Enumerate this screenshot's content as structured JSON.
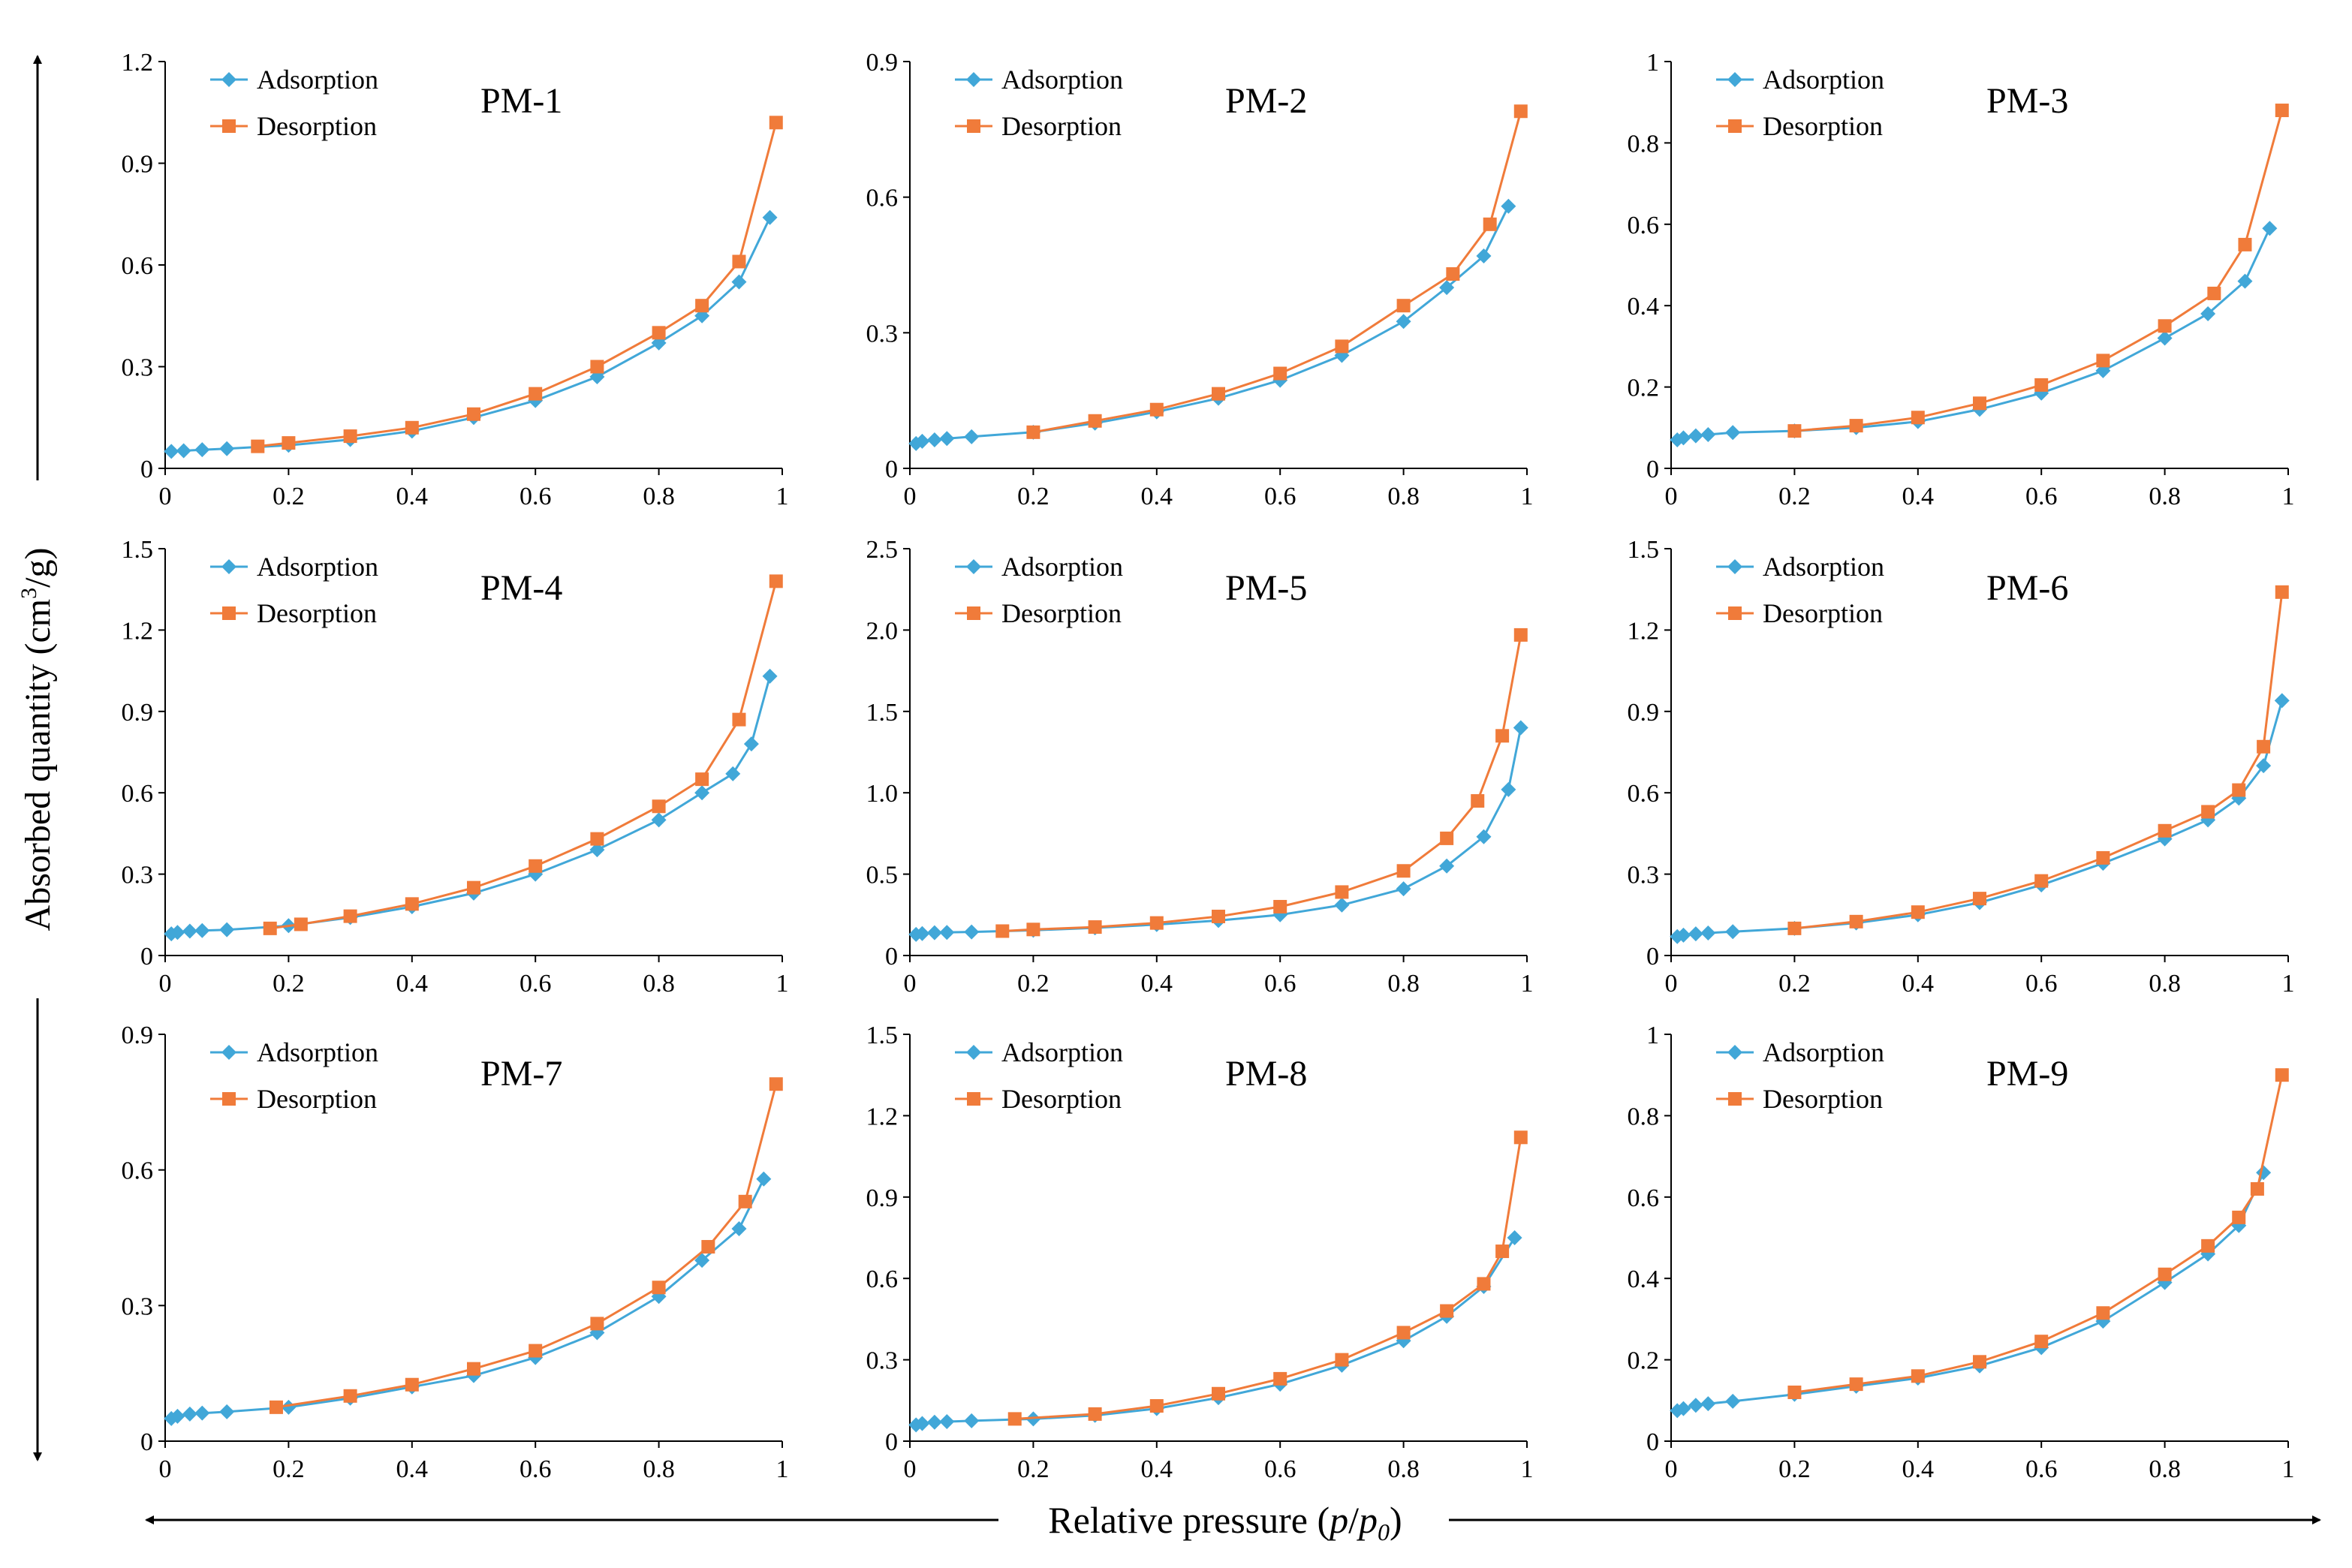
{
  "figure": {
    "ylabel_main": "Absorbed quantity (cm",
    "ylabel_sup": "3",
    "ylabel_tail": "/g)",
    "xlabel_main": "Relative pressure (",
    "xlabel_p": "p",
    "xlabel_slash": "/",
    "xlabel_p0": "p",
    "xlabel_sub": "0",
    "xlabel_close": ")"
  },
  "colors": {
    "adsorption": "#41a7d8",
    "desorption": "#f07b3a",
    "axis": "#000000"
  },
  "legend": {
    "adsorption": "Adsorption",
    "desorption": "Desorption",
    "placement": "top-left"
  },
  "chart_data": [
    {
      "type": "line",
      "title": "PM-1",
      "xlim": [
        0,
        1
      ],
      "ylim": [
        0,
        1.2
      ],
      "xticks": [
        "0",
        "0.2",
        "0.4",
        "0.6",
        "0.8",
        "1"
      ],
      "yticks": [
        "0",
        "0.3",
        "0.6",
        "0.9",
        "1.2"
      ],
      "series": [
        {
          "name": "Adsorption",
          "x": [
            0.01,
            0.03,
            0.06,
            0.1,
            0.2,
            0.3,
            0.4,
            0.5,
            0.6,
            0.7,
            0.8,
            0.87,
            0.93,
            0.98
          ],
          "y": [
            0.05,
            0.052,
            0.055,
            0.058,
            0.068,
            0.085,
            0.11,
            0.15,
            0.2,
            0.27,
            0.37,
            0.45,
            0.55,
            0.74
          ]
        },
        {
          "name": "Desorption",
          "x": [
            0.15,
            0.2,
            0.3,
            0.4,
            0.5,
            0.6,
            0.7,
            0.8,
            0.87,
            0.93,
            0.99
          ],
          "y": [
            0.065,
            0.075,
            0.095,
            0.12,
            0.16,
            0.22,
            0.3,
            0.4,
            0.48,
            0.61,
            1.02
          ]
        }
      ]
    },
    {
      "type": "line",
      "title": "PM-2",
      "xlim": [
        0,
        1
      ],
      "ylim": [
        0,
        0.9
      ],
      "xticks": [
        "0",
        "0.2",
        "0.4",
        "0.6",
        "0.8",
        "1"
      ],
      "yticks": [
        "0",
        "0.3",
        "0.6",
        "0.9"
      ],
      "series": [
        {
          "name": "Adsorption",
          "x": [
            0.01,
            0.02,
            0.04,
            0.06,
            0.1,
            0.2,
            0.3,
            0.4,
            0.5,
            0.6,
            0.7,
            0.8,
            0.87,
            0.93,
            0.97
          ],
          "y": [
            0.055,
            0.06,
            0.063,
            0.066,
            0.07,
            0.08,
            0.1,
            0.125,
            0.155,
            0.195,
            0.25,
            0.325,
            0.4,
            0.47,
            0.58
          ]
        },
        {
          "name": "Desorption",
          "x": [
            0.2,
            0.3,
            0.4,
            0.5,
            0.6,
            0.7,
            0.8,
            0.88,
            0.94,
            0.99
          ],
          "y": [
            0.08,
            0.105,
            0.13,
            0.165,
            0.21,
            0.27,
            0.36,
            0.43,
            0.54,
            0.79
          ]
        }
      ]
    },
    {
      "type": "line",
      "title": "PM-3",
      "xlim": [
        0,
        1
      ],
      "ylim": [
        0,
        1
      ],
      "xticks": [
        "0",
        "0.2",
        "0.4",
        "0.6",
        "0.8",
        "1"
      ],
      "yticks": [
        "0",
        "0.2",
        "0.4",
        "0.6",
        "0.8",
        "1"
      ],
      "series": [
        {
          "name": "Adsorption",
          "x": [
            0.01,
            0.02,
            0.04,
            0.06,
            0.1,
            0.2,
            0.3,
            0.4,
            0.5,
            0.6,
            0.7,
            0.8,
            0.87,
            0.93,
            0.97
          ],
          "y": [
            0.07,
            0.075,
            0.08,
            0.083,
            0.088,
            0.092,
            0.1,
            0.115,
            0.145,
            0.185,
            0.24,
            0.32,
            0.38,
            0.46,
            0.59
          ]
        },
        {
          "name": "Desorption",
          "x": [
            0.2,
            0.3,
            0.4,
            0.5,
            0.6,
            0.7,
            0.8,
            0.88,
            0.93,
            0.99
          ],
          "y": [
            0.092,
            0.105,
            0.125,
            0.16,
            0.205,
            0.265,
            0.35,
            0.43,
            0.55,
            0.88
          ]
        }
      ]
    },
    {
      "type": "line",
      "title": "PM-4",
      "xlim": [
        0,
        1
      ],
      "ylim": [
        0,
        1.5
      ],
      "xticks": [
        "0",
        "0.2",
        "0.4",
        "0.6",
        "0.8",
        "1"
      ],
      "yticks": [
        "0",
        "0.3",
        "0.6",
        "0.9",
        "1.2",
        "1.5"
      ],
      "series": [
        {
          "name": "Adsorption",
          "x": [
            0.01,
            0.02,
            0.04,
            0.06,
            0.1,
            0.2,
            0.3,
            0.4,
            0.5,
            0.6,
            0.7,
            0.8,
            0.87,
            0.92,
            0.95,
            0.98
          ],
          "y": [
            0.08,
            0.085,
            0.09,
            0.092,
            0.095,
            0.11,
            0.14,
            0.18,
            0.23,
            0.3,
            0.39,
            0.5,
            0.6,
            0.67,
            0.78,
            1.03
          ]
        },
        {
          "name": "Desorption",
          "x": [
            0.17,
            0.22,
            0.3,
            0.4,
            0.5,
            0.6,
            0.7,
            0.8,
            0.87,
            0.93,
            0.99
          ],
          "y": [
            0.1,
            0.115,
            0.145,
            0.19,
            0.25,
            0.33,
            0.43,
            0.55,
            0.65,
            0.87,
            1.38
          ]
        }
      ]
    },
    {
      "type": "line",
      "title": "PM-5",
      "xlim": [
        0,
        1
      ],
      "ylim": [
        0,
        2.5
      ],
      "xticks": [
        "0",
        "0.2",
        "0.4",
        "0.6",
        "0.8",
        "1"
      ],
      "yticks": [
        "0",
        "0.5",
        "1.0",
        "1.5",
        "2.0",
        "2.5"
      ],
      "series": [
        {
          "name": "Adsorption",
          "x": [
            0.01,
            0.02,
            0.04,
            0.06,
            0.1,
            0.2,
            0.3,
            0.4,
            0.5,
            0.6,
            0.7,
            0.8,
            0.87,
            0.93,
            0.97,
            0.99
          ],
          "y": [
            0.13,
            0.135,
            0.14,
            0.142,
            0.145,
            0.155,
            0.17,
            0.19,
            0.215,
            0.25,
            0.31,
            0.41,
            0.55,
            0.73,
            1.02,
            1.4
          ]
        },
        {
          "name": "Desorption",
          "x": [
            0.15,
            0.2,
            0.3,
            0.4,
            0.5,
            0.6,
            0.7,
            0.8,
            0.87,
            0.92,
            0.96,
            0.99
          ],
          "y": [
            0.15,
            0.16,
            0.175,
            0.2,
            0.24,
            0.3,
            0.39,
            0.52,
            0.72,
            0.95,
            1.35,
            1.97
          ]
        }
      ]
    },
    {
      "type": "line",
      "title": "PM-6",
      "xlim": [
        0,
        1
      ],
      "ylim": [
        0,
        1.5
      ],
      "xticks": [
        "0",
        "0.2",
        "0.4",
        "0.6",
        "0.8",
        "1"
      ],
      "yticks": [
        "0",
        "0.3",
        "0.6",
        "0.9",
        "1.2",
        "1.5"
      ],
      "series": [
        {
          "name": "Adsorption",
          "x": [
            0.01,
            0.02,
            0.04,
            0.06,
            0.1,
            0.2,
            0.3,
            0.4,
            0.5,
            0.6,
            0.7,
            0.8,
            0.87,
            0.92,
            0.96,
            0.99
          ],
          "y": [
            0.07,
            0.075,
            0.08,
            0.083,
            0.088,
            0.1,
            0.12,
            0.15,
            0.195,
            0.26,
            0.34,
            0.43,
            0.5,
            0.58,
            0.7,
            0.94
          ]
        },
        {
          "name": "Desorption",
          "x": [
            0.2,
            0.3,
            0.4,
            0.5,
            0.6,
            0.7,
            0.8,
            0.87,
            0.92,
            0.96,
            0.99
          ],
          "y": [
            0.1,
            0.125,
            0.16,
            0.21,
            0.275,
            0.36,
            0.46,
            0.53,
            0.61,
            0.77,
            1.34
          ]
        }
      ]
    },
    {
      "type": "line",
      "title": "PM-7",
      "xlim": [
        0,
        1
      ],
      "ylim": [
        0,
        0.9
      ],
      "xticks": [
        "0",
        "0.2",
        "0.4",
        "0.6",
        "0.8",
        "1"
      ],
      "yticks": [
        "0",
        "0.3",
        "0.6",
        "0.9"
      ],
      "series": [
        {
          "name": "Adsorption",
          "x": [
            0.01,
            0.02,
            0.04,
            0.06,
            0.1,
            0.2,
            0.3,
            0.4,
            0.5,
            0.6,
            0.7,
            0.8,
            0.87,
            0.93,
            0.97
          ],
          "y": [
            0.05,
            0.055,
            0.06,
            0.062,
            0.065,
            0.075,
            0.095,
            0.12,
            0.145,
            0.185,
            0.24,
            0.32,
            0.4,
            0.47,
            0.58
          ]
        },
        {
          "name": "Desorption",
          "x": [
            0.18,
            0.3,
            0.4,
            0.5,
            0.6,
            0.7,
            0.8,
            0.88,
            0.94,
            0.99
          ],
          "y": [
            0.075,
            0.1,
            0.125,
            0.16,
            0.2,
            0.26,
            0.34,
            0.43,
            0.53,
            0.79
          ]
        }
      ]
    },
    {
      "type": "line",
      "title": "PM-8",
      "xlim": [
        0,
        1
      ],
      "ylim": [
        0,
        1.5
      ],
      "xticks": [
        "0",
        "0.2",
        "0.4",
        "0.6",
        "0.8",
        "1"
      ],
      "yticks": [
        "0",
        "0.3",
        "0.6",
        "0.9",
        "1.2",
        "1.5"
      ],
      "series": [
        {
          "name": "Adsorption",
          "x": [
            0.01,
            0.02,
            0.04,
            0.06,
            0.1,
            0.2,
            0.3,
            0.4,
            0.5,
            0.6,
            0.7,
            0.8,
            0.87,
            0.93,
            0.98
          ],
          "y": [
            0.06,
            0.065,
            0.07,
            0.072,
            0.075,
            0.082,
            0.095,
            0.12,
            0.16,
            0.21,
            0.28,
            0.37,
            0.46,
            0.57,
            0.75
          ]
        },
        {
          "name": "Desorption",
          "x": [
            0.17,
            0.3,
            0.4,
            0.5,
            0.6,
            0.7,
            0.8,
            0.87,
            0.93,
            0.96,
            0.99
          ],
          "y": [
            0.082,
            0.1,
            0.13,
            0.175,
            0.23,
            0.3,
            0.4,
            0.48,
            0.58,
            0.7,
            1.12
          ]
        }
      ]
    },
    {
      "type": "line",
      "title": "PM-9",
      "xlim": [
        0,
        1
      ],
      "ylim": [
        0,
        1
      ],
      "xticks": [
        "0",
        "0.2",
        "0.4",
        "0.6",
        "0.8",
        "1"
      ],
      "yticks": [
        "0",
        "0.2",
        "0.4",
        "0.6",
        "0.8",
        "1"
      ],
      "series": [
        {
          "name": "Adsorption",
          "x": [
            0.01,
            0.02,
            0.04,
            0.06,
            0.1,
            0.2,
            0.3,
            0.4,
            0.5,
            0.6,
            0.7,
            0.8,
            0.87,
            0.92,
            0.96
          ],
          "y": [
            0.075,
            0.08,
            0.088,
            0.092,
            0.098,
            0.115,
            0.135,
            0.155,
            0.185,
            0.23,
            0.295,
            0.39,
            0.46,
            0.53,
            0.66
          ]
        },
        {
          "name": "Desorption",
          "x": [
            0.2,
            0.3,
            0.4,
            0.5,
            0.6,
            0.7,
            0.8,
            0.87,
            0.92,
            0.95,
            0.99
          ],
          "y": [
            0.12,
            0.14,
            0.16,
            0.195,
            0.245,
            0.315,
            0.41,
            0.48,
            0.55,
            0.62,
            0.9
          ]
        }
      ]
    }
  ]
}
